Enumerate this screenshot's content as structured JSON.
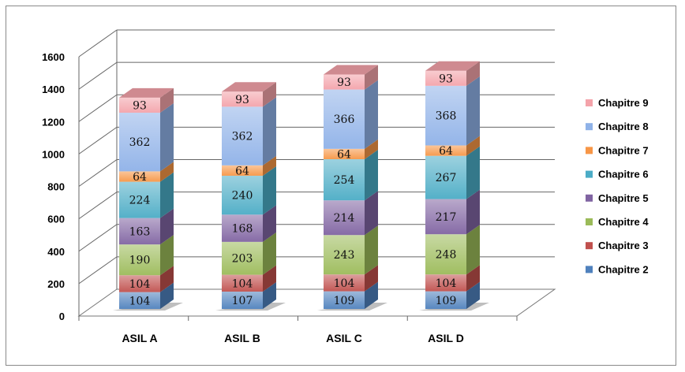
{
  "chart_data": {
    "type": "bar",
    "stacked": true,
    "style": "3d",
    "categories": [
      "ASIL A",
      "ASIL B",
      "ASIL C",
      "ASIL D"
    ],
    "series": [
      {
        "name": "Chapitre 2",
        "color": "#4f81bd",
        "values": [
          104,
          107,
          109,
          109
        ]
      },
      {
        "name": "Chapitre 3",
        "color": "#c0504d",
        "values": [
          104,
          104,
          104,
          104
        ]
      },
      {
        "name": "Chapitre 4",
        "color": "#9bbb59",
        "values": [
          190,
          203,
          243,
          248
        ]
      },
      {
        "name": "Chapitre 5",
        "color": "#8064a2",
        "values": [
          163,
          168,
          214,
          217
        ]
      },
      {
        "name": "Chapitre 6",
        "color": "#4bacc6",
        "values": [
          224,
          240,
          254,
          267
        ]
      },
      {
        "name": "Chapitre 7",
        "color": "#f79646",
        "values": [
          64,
          64,
          64,
          64
        ]
      },
      {
        "name": "Chapitre 8",
        "color": "#8fb2e8",
        "values": [
          362,
          362,
          366,
          368
        ]
      },
      {
        "name": "Chapitre 9",
        "color": "#f4a3aa",
        "values": [
          93,
          93,
          93,
          93
        ]
      }
    ],
    "yticks": [
      0,
      200,
      400,
      600,
      800,
      1000,
      1200,
      1400,
      1600
    ],
    "ylim": [
      0,
      1600
    ],
    "grid": true,
    "legend": "right",
    "title": "",
    "xlabel": "",
    "ylabel": ""
  }
}
